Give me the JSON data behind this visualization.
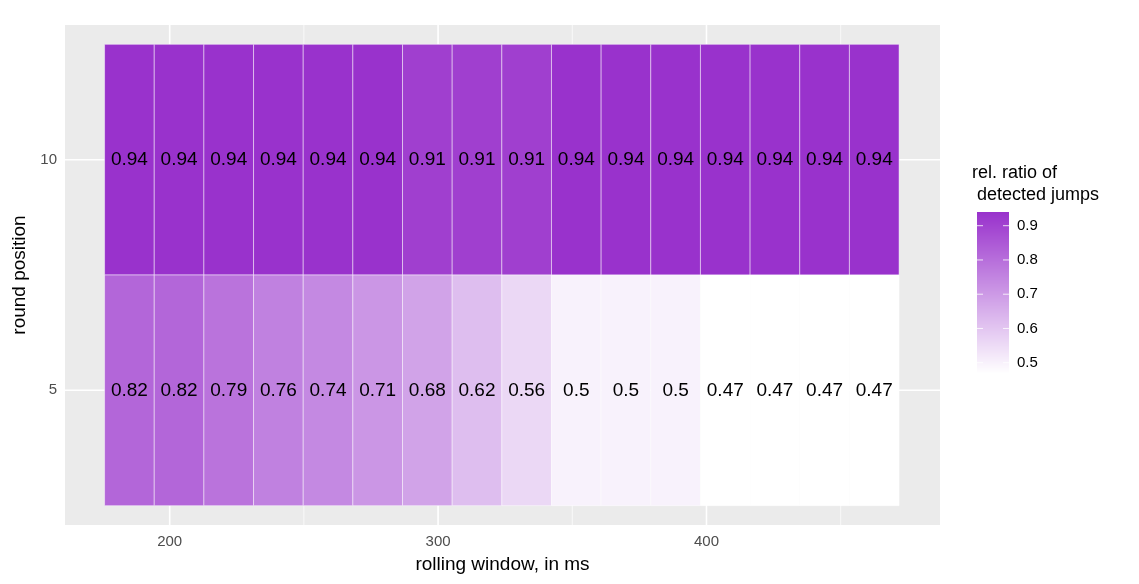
{
  "chart_data": {
    "type": "heatmap",
    "xlabel": "rolling window, in ms",
    "ylabel": "round position",
    "legend_title": "rel. ratio of\n detected jumps",
    "x": [
      185,
      203.5,
      222,
      240.5,
      259,
      277.5,
      296,
      314.5,
      333,
      351.5,
      370,
      388.5,
      407,
      425.5,
      444,
      462.5
    ],
    "y_categories": [
      "10",
      "5"
    ],
    "cells": [
      [
        0.94,
        0.94,
        0.94,
        0.94,
        0.94,
        0.94,
        0.91,
        0.91,
        0.91,
        0.94,
        0.94,
        0.94,
        0.94,
        0.94,
        0.94,
        0.94
      ],
      [
        0.82,
        0.82,
        0.79,
        0.76,
        0.74,
        0.71,
        0.68,
        0.62,
        0.56,
        0.5,
        0.5,
        0.5,
        0.47,
        0.47,
        0.47,
        0.47
      ]
    ],
    "xlim": [
      161,
      487
    ],
    "xticks": [
      200,
      300,
      400
    ],
    "clim": [
      0.47,
      0.94
    ],
    "cticks": [
      0.5,
      0.6,
      0.7,
      0.8,
      0.9
    ],
    "colors": [
      "#ffffff",
      "#9932cc"
    ],
    "data_labels": true,
    "grid": true
  }
}
